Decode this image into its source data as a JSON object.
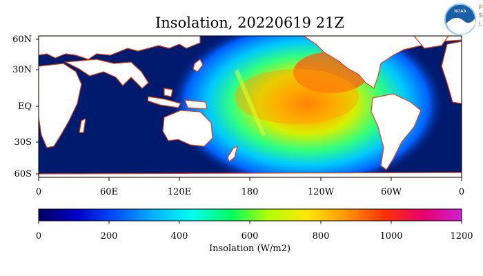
{
  "title": "Insolation, 20220619 21Z",
  "logo": {
    "noaa_text": "NOAA",
    "psl_letters": [
      "P",
      "S",
      "L"
    ]
  },
  "map": {
    "lat_labels": [
      "60N",
      "30N",
      "EQ",
      "30S",
      "60S"
    ],
    "lon_labels": [
      "0",
      "60E",
      "120E",
      "180",
      "120W",
      "60W",
      "0"
    ],
    "background_color": "#001a6e",
    "land_color": "#ffffff",
    "coast_color": "#e0401a"
  },
  "colorbar": {
    "ticks": [
      "0",
      "200",
      "400",
      "600",
      "800",
      "1000",
      "1200"
    ],
    "label": "Insolation (W/m2)",
    "range": [
      0,
      1200
    ],
    "colors": [
      "#000060",
      "#0000c8",
      "#0050ff",
      "#00b4ff",
      "#00ffee",
      "#00ff60",
      "#b4ff00",
      "#ffe600",
      "#ff9600",
      "#ff3200",
      "#e6006e",
      "#d020d0"
    ]
  }
}
